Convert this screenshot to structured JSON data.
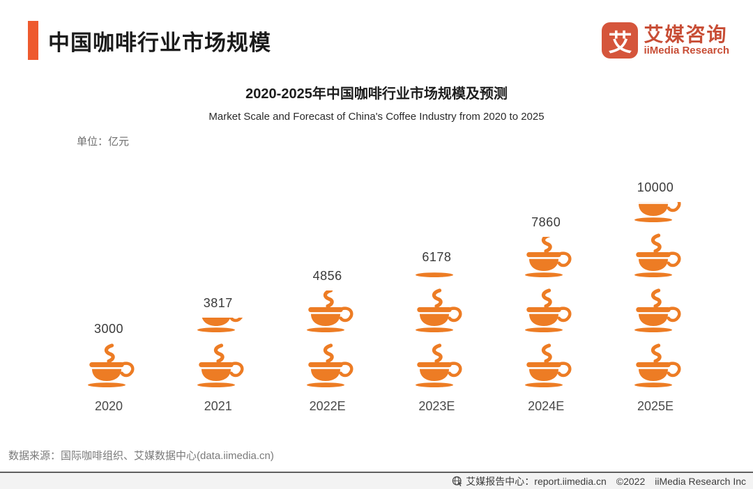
{
  "header": {
    "title": "中国咖啡行业市场规模"
  },
  "logo": {
    "glyph": "艾",
    "name_cn": "艾媒咨询",
    "name_en": "iiMedia Research",
    "brand_color": "#C84E36"
  },
  "chart_header": {
    "title": "2020-2025年中国咖啡行业市场规模及预测",
    "subtitle": "Market Scale and Forecast of China's Coffee Industry from 2020 to 2025",
    "unit_label": "单位：亿元"
  },
  "chart_data": {
    "type": "bar",
    "subtype": "pictograph",
    "title": "2020-2025年中国咖啡行业市场规模及预测",
    "subtitle": "Market Scale and Forecast of China's Coffee Industry from 2020 to 2025",
    "unit": "亿元",
    "categories": [
      "2020",
      "2021",
      "2022E",
      "2023E",
      "2024E",
      "2025E"
    ],
    "values": [
      3000,
      3817,
      4856,
      6178,
      7860,
      10000
    ],
    "data_labels_shown": true,
    "grid": false,
    "legend": false,
    "pictogram": {
      "symbol": "coffee-cup",
      "color": "#ED7C24",
      "full_cups": [
        1,
        1,
        1,
        2,
        2,
        3
      ],
      "partial_cup_fraction": [
        0,
        0.37,
        0.95,
        0.16,
        0.92,
        0.48
      ]
    }
  },
  "source": {
    "text": "数据来源：国际咖啡组织、艾媒数据中心(data.iimedia.cn)"
  },
  "footer": {
    "report_center": "艾媒报告中心：report.iimedia.cn",
    "copyright": "©2022",
    "company": "iiMedia Research Inc"
  }
}
